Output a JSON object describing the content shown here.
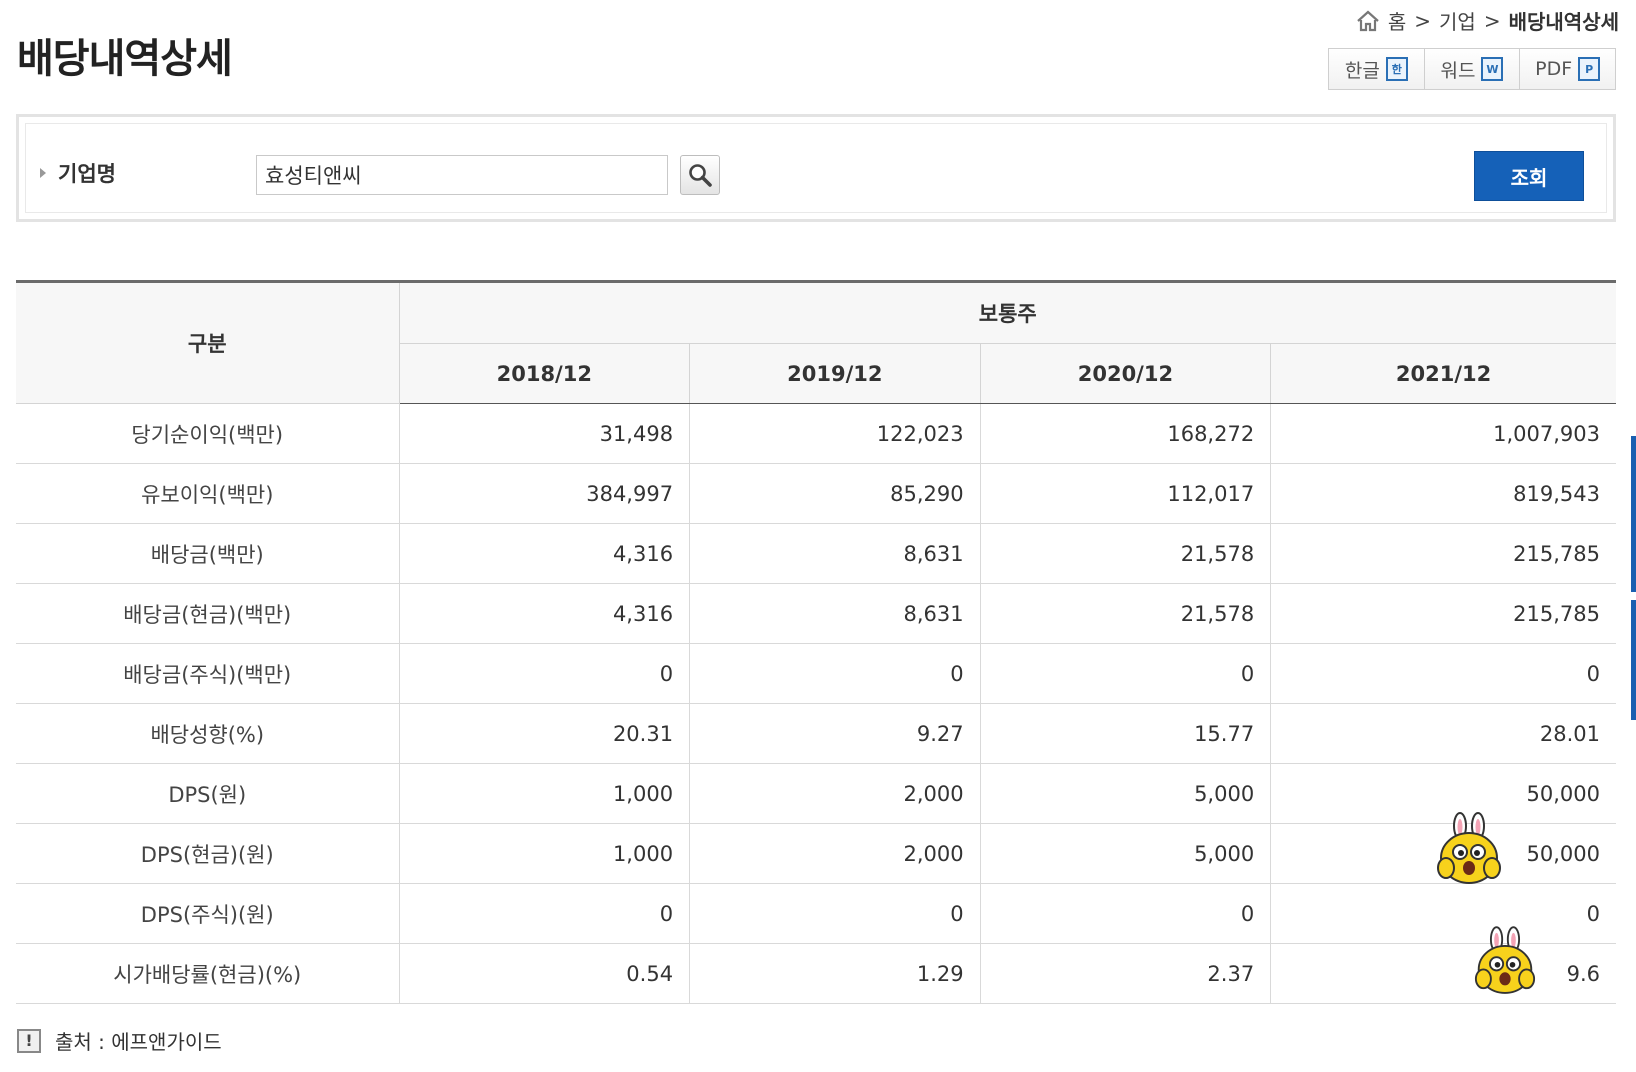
{
  "page": {
    "title": "배당내역상세"
  },
  "breadcrumb": {
    "home": "홈",
    "sep": ">",
    "level1": "기업",
    "current": "배당내역상세"
  },
  "export": [
    {
      "label": "한글",
      "icon": "hwp-file-icon",
      "glyph": "한"
    },
    {
      "label": "워드",
      "icon": "word-file-icon",
      "glyph": "W"
    },
    {
      "label": "PDF",
      "icon": "pdf-file-icon",
      "glyph": "P"
    }
  ],
  "search": {
    "label": "기업명",
    "value": "효성티앤씨",
    "submit_label": "조회"
  },
  "table": {
    "header_row_label": "구분",
    "group_header": "보통주",
    "periods": [
      "2018/12",
      "2019/12",
      "2020/12",
      "2021/12"
    ],
    "rows": [
      {
        "label": "당기순이익(백만)",
        "values": [
          "31,498",
          "122,023",
          "168,272",
          "1,007,903"
        ]
      },
      {
        "label": "유보이익(백만)",
        "values": [
          "384,997",
          "85,290",
          "112,017",
          "819,543"
        ]
      },
      {
        "label": "배당금(백만)",
        "values": [
          "4,316",
          "8,631",
          "21,578",
          "215,785"
        ]
      },
      {
        "label": "배당금(현금)(백만)",
        "values": [
          "4,316",
          "8,631",
          "21,578",
          "215,785"
        ]
      },
      {
        "label": "배당금(주식)(백만)",
        "values": [
          "0",
          "0",
          "0",
          "0"
        ]
      },
      {
        "label": "배당성향(%)",
        "values": [
          "20.31",
          "9.27",
          "15.77",
          "28.01"
        ]
      },
      {
        "label": "DPS(원)",
        "values": [
          "1,000",
          "2,000",
          "5,000",
          "50,000"
        ]
      },
      {
        "label": "DPS(현금)(원)",
        "values": [
          "1,000",
          "2,000",
          "5,000",
          "50,000"
        ]
      },
      {
        "label": "DPS(주식)(원)",
        "values": [
          "0",
          "0",
          "0",
          "0"
        ]
      },
      {
        "label": "시가배당률(현금)(%)",
        "values": [
          "0.54",
          "1.29",
          "2.37",
          "9.6"
        ]
      }
    ]
  },
  "source": {
    "icon_glyph": "!",
    "text": "출처 : 에프앤가이드"
  },
  "colors": {
    "primary_button": "#1561b8",
    "table_top_border": "#6b6b6b"
  }
}
